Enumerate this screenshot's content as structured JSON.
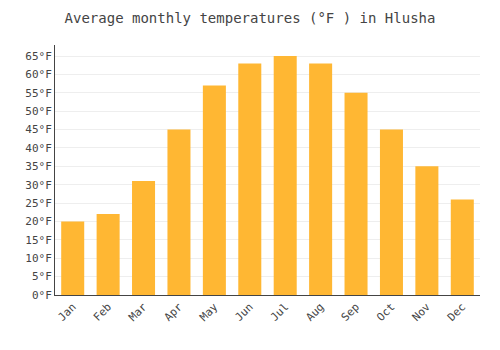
{
  "chart_data": {
    "type": "bar",
    "title": "Average monthly temperatures (°F ) in Hlusha",
    "categories": [
      "Jan",
      "Feb",
      "Mar",
      "Apr",
      "May",
      "Jun",
      "Jul",
      "Aug",
      "Sep",
      "Oct",
      "Nov",
      "Dec"
    ],
    "values": [
      20,
      22,
      31,
      45,
      57,
      63,
      65,
      63,
      55,
      45,
      35,
      26
    ],
    "color": "#FFB733",
    "ylim": [
      0,
      68
    ],
    "yticks": [
      {
        "value": 0,
        "label": "0°F"
      },
      {
        "value": 5,
        "label": "5°F"
      },
      {
        "value": 10,
        "label": "10°F"
      },
      {
        "value": 15,
        "label": "15°F"
      },
      {
        "value": 20,
        "label": "20°F"
      },
      {
        "value": 25,
        "label": "25°F"
      },
      {
        "value": 30,
        "label": "30°F"
      },
      {
        "value": 35,
        "label": "35°F"
      },
      {
        "value": 40,
        "label": "40°F"
      },
      {
        "value": 45,
        "label": "45°F"
      },
      {
        "value": 50,
        "label": "50°F"
      },
      {
        "value": 55,
        "label": "55°F"
      },
      {
        "value": 60,
        "label": "60°F"
      },
      {
        "value": 65,
        "label": "65°F"
      }
    ],
    "grid": true
  }
}
